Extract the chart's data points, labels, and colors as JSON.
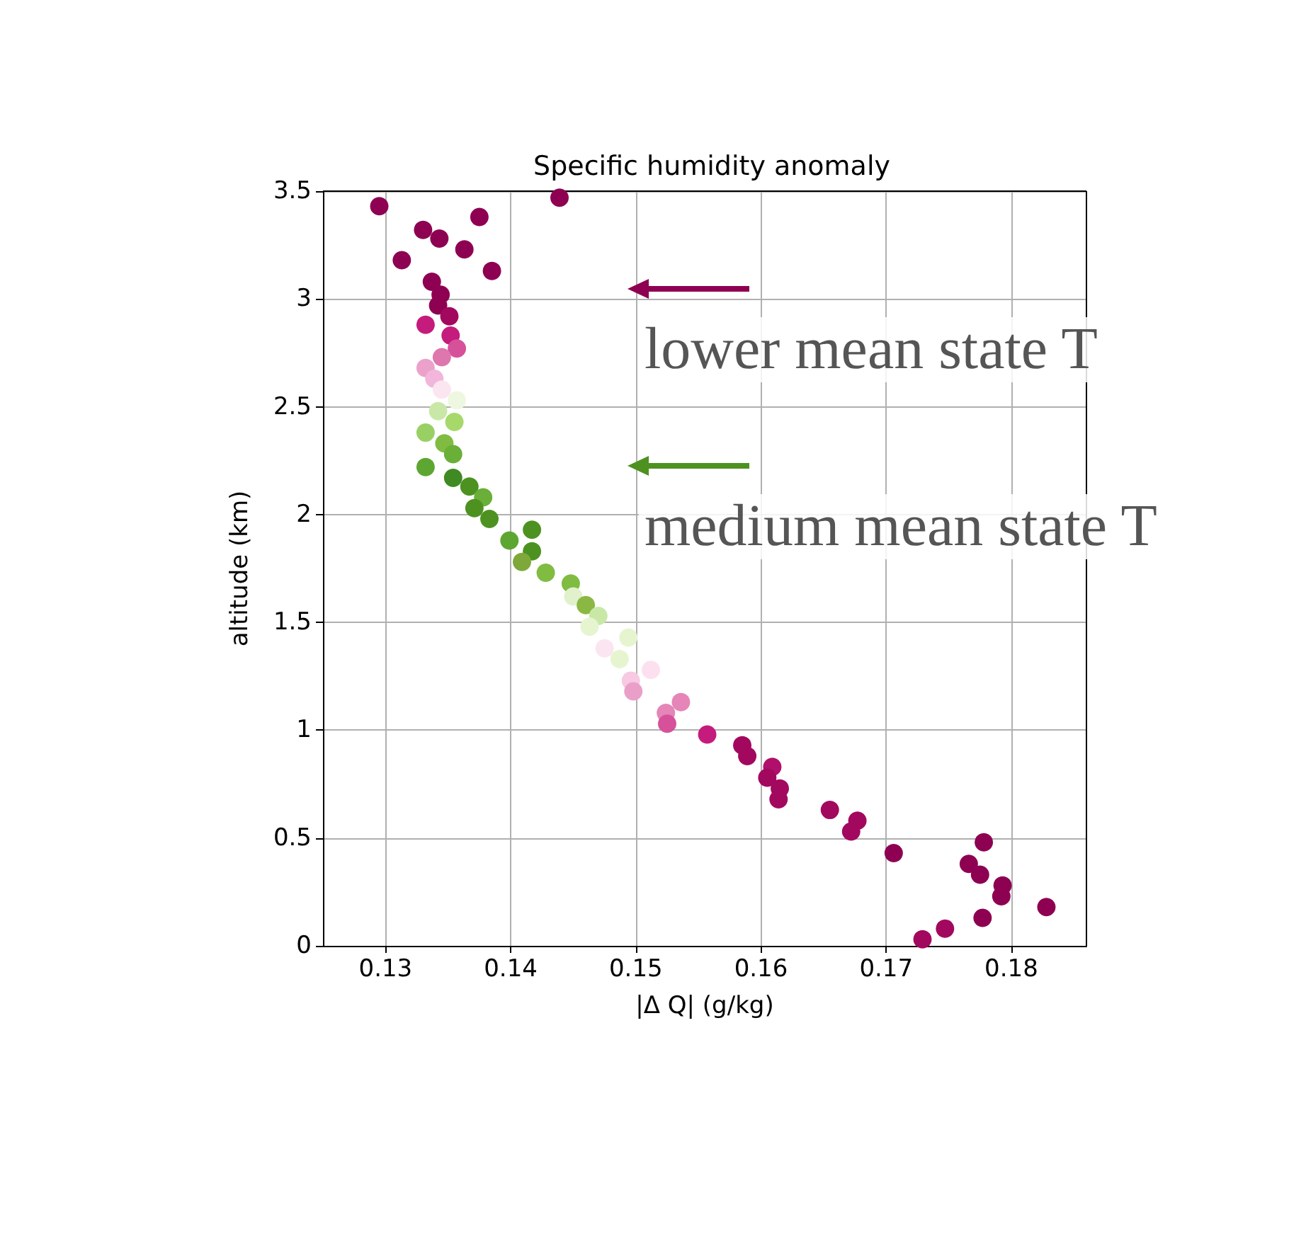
{
  "chart_data": {
    "type": "scatter",
    "title": "Specific humidity anomaly",
    "xlabel": "|Δ Q| (g/kg)",
    "ylabel": "altitude (km)",
    "xlim": [
      0.125,
      0.186
    ],
    "xticks": [
      0.13,
      0.14,
      0.15,
      0.16,
      0.17,
      0.18
    ],
    "ylim": [
      0,
      3.5
    ],
    "yticks": [
      0,
      0.5,
      1,
      1.5,
      2,
      2.5,
      3,
      3.5
    ],
    "grid": true,
    "marker": "circle",
    "x": [
      0.1295,
      0.1439,
      0.133,
      0.1375,
      0.1343,
      0.1363,
      0.1313,
      0.1385,
      0.1337,
      0.1344,
      0.1342,
      0.1351,
      0.1332,
      0.1352,
      0.1357,
      0.1345,
      0.1332,
      0.1339,
      0.1345,
      0.1357,
      0.1342,
      0.1355,
      0.1332,
      0.1347,
      0.1354,
      0.1332,
      0.1354,
      0.1367,
      0.1378,
      0.1371,
      0.1383,
      0.1417,
      0.1399,
      0.1417,
      0.1409,
      0.1428,
      0.1448,
      0.145,
      0.146,
      0.147,
      0.1463,
      0.1494,
      0.1475,
      0.1487,
      0.1512,
      0.1496,
      0.1498,
      0.1536,
      0.1524,
      0.1525,
      0.1557,
      0.1585,
      0.1589,
      0.1609,
      0.1605,
      0.1615,
      0.1614,
      0.1655,
      0.1677,
      0.1672,
      0.1778,
      0.1706,
      0.1766,
      0.1775,
      0.1793,
      0.1792,
      0.1828,
      0.1777,
      0.1747,
      0.1729
    ],
    "values": [
      3.43,
      3.47,
      3.32,
      3.38,
      3.28,
      3.23,
      3.18,
      3.13,
      3.08,
      3.02,
      2.97,
      2.92,
      2.88,
      2.83,
      2.77,
      2.73,
      2.68,
      2.63,
      2.58,
      2.53,
      2.48,
      2.43,
      2.38,
      2.33,
      2.28,
      2.22,
      2.17,
      2.13,
      2.08,
      2.03,
      1.98,
      1.93,
      1.88,
      1.83,
      1.78,
      1.73,
      1.68,
      1.62,
      1.58,
      1.53,
      1.48,
      1.43,
      1.38,
      1.33,
      1.28,
      1.23,
      1.18,
      1.13,
      1.08,
      1.03,
      0.98,
      0.93,
      0.88,
      0.83,
      0.78,
      0.73,
      0.68,
      0.63,
      0.58,
      0.53,
      0.48,
      0.43,
      0.38,
      0.33,
      0.28,
      0.23,
      0.18,
      0.13,
      0.08,
      0.03
    ],
    "colors": [
      "#8e0152",
      "#8e0152",
      "#8e0152",
      "#8e0152",
      "#8e0152",
      "#8e0152",
      "#8e0152",
      "#8e0152",
      "#8e0152",
      "#8e0152",
      "#8e0152",
      "#a3085f",
      "#c51b7d",
      "#c51b7d",
      "#d6519a",
      "#de77ae",
      "#eba1ca",
      "#f1b6da",
      "#fbe5f0",
      "#eef7e0",
      "#c9e8a8",
      "#a6d96a",
      "#99d064",
      "#7fbc41",
      "#6aaf38",
      "#5ea632",
      "#3f8a22",
      "#4d9221",
      "#6aaf38",
      "#4d9221",
      "#4d9221",
      "#4d9221",
      "#5ea632",
      "#4d9221",
      "#7fa83a",
      "#7fbc41",
      "#7fbc41",
      "#e0f1cc",
      "#8bb843",
      "#c9e8a8",
      "#e6f5d0",
      "#e6f5d0",
      "#fbe5f0",
      "#e6f5d0",
      "#fde0ef",
      "#f7c9e3",
      "#ea9fc9",
      "#e585b8",
      "#e585b8",
      "#d6519a",
      "#c51b7d",
      "#a3085f",
      "#a3085f",
      "#b0106b",
      "#a3085f",
      "#a3085f",
      "#a3085f",
      "#a3085f",
      "#a3085f",
      "#a3085f",
      "#8e0152",
      "#8e0152",
      "#8e0152",
      "#8e0152",
      "#8e0152",
      "#8e0152",
      "#8e0152",
      "#8e0152",
      "#a3085f",
      "#a3085f"
    ],
    "annotations": [
      "lower mean state T",
      "medium mean state T"
    ]
  }
}
